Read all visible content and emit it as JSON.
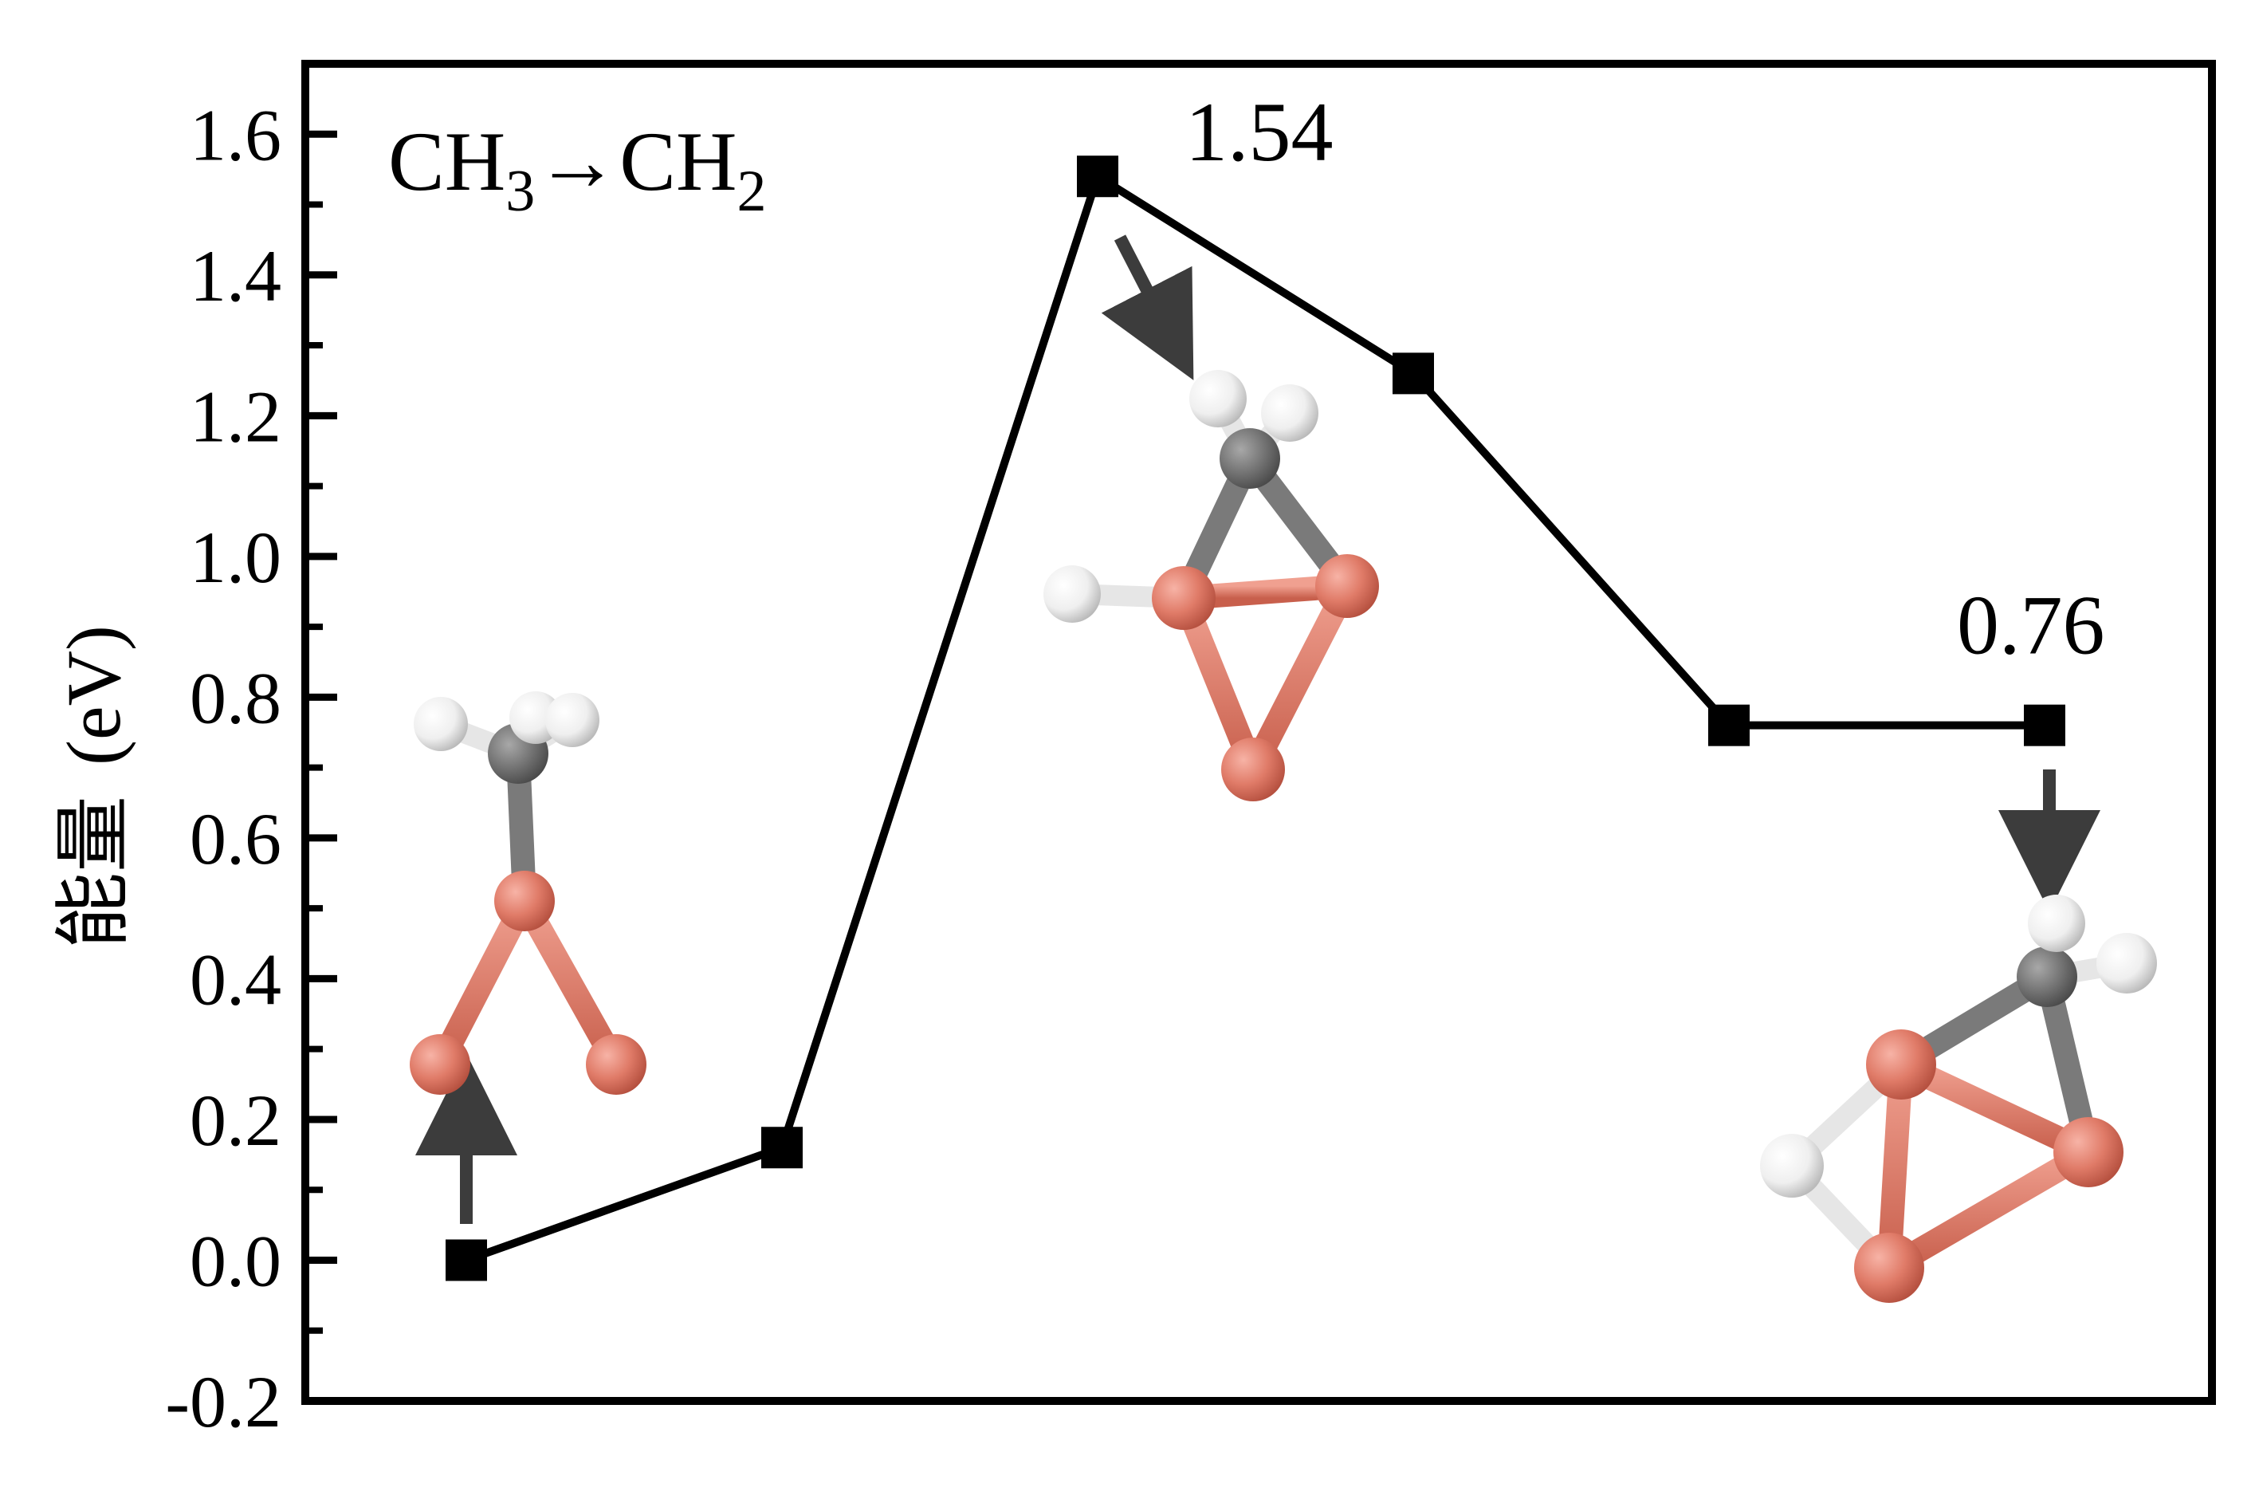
{
  "chart_data": {
    "type": "line",
    "title": "",
    "annotation_reaction": {
      "main": "CH",
      "sub1": "3",
      "arrow": "→",
      "main2": "CH",
      "sub2": "2"
    },
    "ylabel_cn": "能量",
    "ylabel_unit": "(eV)",
    "ylim": [
      -0.2,
      1.7
    ],
    "yticks": [
      "-0.2",
      "0.0",
      "0.2",
      "0.4",
      "0.6",
      "0.8",
      "1.0",
      "1.2",
      "1.4",
      "1.6"
    ],
    "x": [
      1,
      2,
      3,
      4,
      5,
      6
    ],
    "values": [
      0.0,
      0.16,
      1.54,
      1.26,
      0.76,
      0.76
    ],
    "value_labels": [
      {
        "point": 2,
        "text": "1.54"
      },
      {
        "point": 5,
        "text": "0.76"
      }
    ],
    "grid": false,
    "legend": "none",
    "colors": {
      "line": "#000000",
      "marker": "#000000",
      "arrow": "#3c3c3c",
      "cu_atom": "#e07b68",
      "c_atom": "#707070",
      "h_atom": "#f2f2f2"
    }
  }
}
